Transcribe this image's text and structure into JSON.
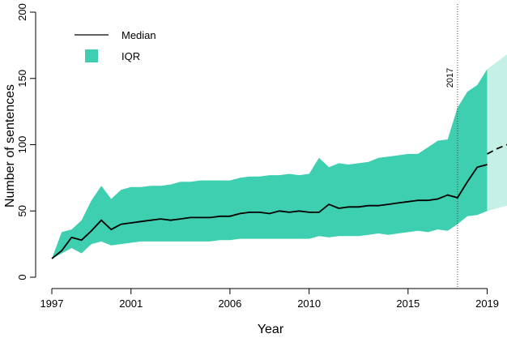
{
  "chart_data": {
    "type": "area",
    "xlabel": "Year",
    "ylabel": "Number of sentences",
    "xlim": [
      1997,
      2020
    ],
    "ylim": [
      0,
      200
    ],
    "x_ticks": [
      1997,
      2001,
      2006,
      2010,
      2015,
      2019
    ],
    "y_ticks": [
      0,
      50,
      100,
      150,
      200
    ],
    "legend": {
      "position": "top-left",
      "entries": [
        "Median",
        "IQR"
      ]
    },
    "colors": {
      "iqr": "#3ecfb0",
      "iqr_projection": "#c4f0e5",
      "median": "#000000",
      "annotation_line": "#444444"
    },
    "annotation": {
      "label": "2017",
      "x": 2017.5
    },
    "iqr": {
      "x": [
        1997,
        1997.5,
        1998,
        1998.5,
        1999,
        1999.5,
        2000,
        2000.5,
        2001,
        2001.5,
        2002,
        2002.5,
        2003,
        2003.5,
        2004,
        2004.5,
        2005,
        2005.5,
        2006,
        2006.5,
        2007,
        2007.5,
        2008,
        2008.5,
        2009,
        2009.5,
        2010,
        2010.5,
        2011,
        2011.5,
        2012,
        2012.5,
        2013,
        2013.5,
        2014,
        2014.5,
        2015,
        2015.5,
        2016,
        2016.5,
        2017,
        2017.5,
        2018,
        2018.5,
        2019
      ],
      "lower": [
        14,
        18,
        22,
        18,
        25,
        27,
        24,
        25,
        26,
        27,
        27,
        27,
        27,
        27,
        27,
        27,
        27,
        28,
        28,
        29,
        29,
        29,
        29,
        29,
        29,
        29,
        29,
        31,
        30,
        31,
        31,
        31,
        32,
        33,
        32,
        33,
        34,
        35,
        34,
        36,
        35,
        40,
        46,
        47,
        50
      ],
      "upper": [
        14,
        34,
        36,
        43,
        58,
        69,
        59,
        66,
        68,
        68,
        69,
        69,
        70,
        72,
        72,
        73,
        73,
        73,
        73,
        75,
        76,
        76,
        77,
        77,
        78,
        77,
        78,
        90,
        83,
        86,
        85,
        86,
        87,
        90,
        91,
        92,
        93,
        93,
        98,
        103,
        104,
        128,
        140,
        145,
        157
      ]
    },
    "iqr_projection": {
      "x": [
        2019,
        2020
      ],
      "lower": [
        50,
        54
      ],
      "upper": [
        157,
        168
      ]
    },
    "series": [
      {
        "name": "Median",
        "x": [
          1997,
          1997.5,
          1998,
          1998.5,
          1999,
          1999.5,
          2000,
          2000.5,
          2001,
          2001.5,
          2002,
          2002.5,
          2003,
          2003.5,
          2004,
          2004.5,
          2005,
          2005.5,
          2006,
          2006.5,
          2007,
          2007.5,
          2008,
          2008.5,
          2009,
          2009.5,
          2010,
          2010.5,
          2011,
          2011.5,
          2012,
          2012.5,
          2013,
          2013.5,
          2014,
          2014.5,
          2015,
          2015.5,
          2016,
          2016.5,
          2017,
          2017.5,
          2018,
          2018.5,
          2019
        ],
        "y": [
          14,
          20,
          30,
          28,
          35,
          43,
          36,
          40,
          41,
          42,
          43,
          44,
          43,
          44,
          45,
          45,
          45,
          46,
          46,
          48,
          49,
          49,
          48,
          50,
          49,
          50,
          49,
          49,
          55,
          52,
          53,
          53,
          54,
          54,
          55,
          56,
          57,
          58,
          58,
          59,
          62,
          60,
          72,
          83,
          85
        ]
      },
      {
        "name": "Median projection",
        "x": [
          2019,
          2019.5,
          2020
        ],
        "y": [
          93,
          97,
          100
        ]
      }
    ]
  }
}
